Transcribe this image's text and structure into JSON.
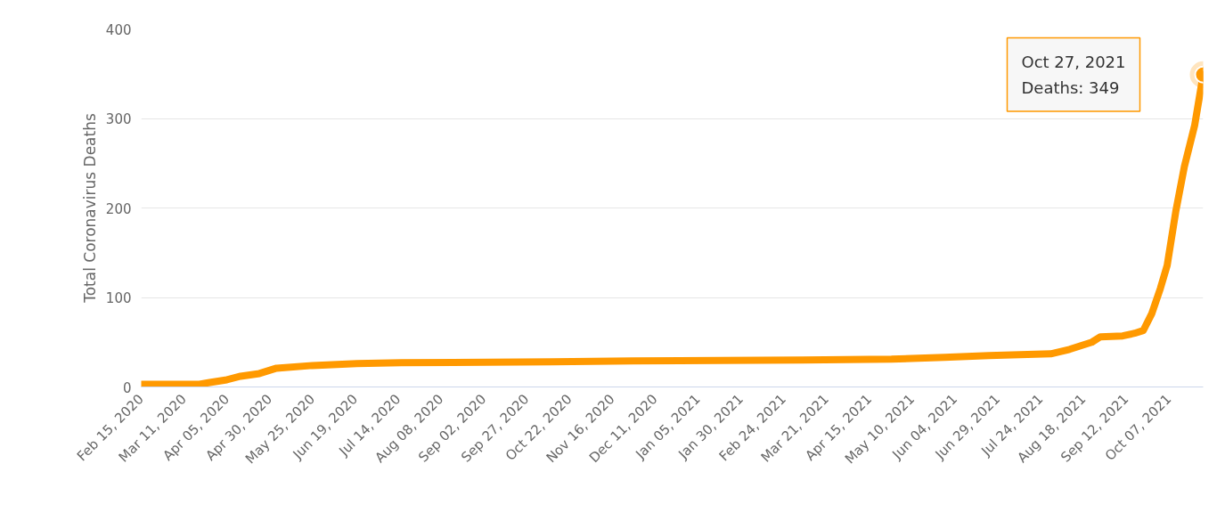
{
  "chart_data": {
    "type": "line",
    "ylabel": "Total Coronavirus Deaths",
    "x": [
      "2020-02-15",
      "2020-03-20",
      "2020-03-26",
      "2020-04-05",
      "2020-04-13",
      "2020-04-24",
      "2020-05-04",
      "2020-05-25",
      "2020-06-20",
      "2020-07-16",
      "2020-10-12",
      "2020-11-28",
      "2021-03-07",
      "2021-04-28",
      "2021-05-29",
      "2021-06-24",
      "2021-07-30",
      "2021-08-10",
      "2021-08-23",
      "2021-08-28",
      "2021-09-10",
      "2021-09-17",
      "2021-09-22",
      "2021-09-27",
      "2021-10-02",
      "2021-10-06",
      "2021-10-11",
      "2021-10-16",
      "2021-10-22",
      "2021-10-27"
    ],
    "series": [
      {
        "color": "#ff9900",
        "values": [
          3,
          3,
          5,
          8,
          12,
          15,
          21,
          24,
          26,
          27,
          28,
          29,
          30,
          31,
          33,
          35,
          37,
          42,
          50,
          56,
          57,
          60,
          63,
          82,
          110,
          136,
          196,
          246,
          292,
          349
        ]
      }
    ],
    "xlim": [
      "2020-02-15",
      "2021-10-27"
    ],
    "xticks": [
      {
        "value": "2020-02-15",
        "label": "Feb 15, 2020"
      },
      {
        "value": "2020-03-11",
        "label": "Mar 11, 2020"
      },
      {
        "value": "2020-04-05",
        "label": "Apr 05, 2020"
      },
      {
        "value": "2020-04-30",
        "label": "Apr 30, 2020"
      },
      {
        "value": "2020-05-25",
        "label": "May 25, 2020"
      },
      {
        "value": "2020-06-19",
        "label": "Jun 19, 2020"
      },
      {
        "value": "2020-07-14",
        "label": "Jul 14, 2020"
      },
      {
        "value": "2020-08-08",
        "label": "Aug 08, 2020"
      },
      {
        "value": "2020-09-02",
        "label": "Sep 02, 2020"
      },
      {
        "value": "2020-09-27",
        "label": "Sep 27, 2020"
      },
      {
        "value": "2020-10-22",
        "label": "Oct 22, 2020"
      },
      {
        "value": "2020-11-16",
        "label": "Nov 16, 2020"
      },
      {
        "value": "2020-12-11",
        "label": "Dec 11, 2020"
      },
      {
        "value": "2021-01-05",
        "label": "Jan 05, 2021"
      },
      {
        "value": "2021-01-30",
        "label": "Jan 30, 2021"
      },
      {
        "value": "2021-02-24",
        "label": "Feb 24, 2021"
      },
      {
        "value": "2021-03-21",
        "label": "Mar 21, 2021"
      },
      {
        "value": "2021-04-15",
        "label": "Apr 15, 2021"
      },
      {
        "value": "2021-05-10",
        "label": "May 10, 2021"
      },
      {
        "value": "2021-06-04",
        "label": "Jun 04, 2021"
      },
      {
        "value": "2021-06-29",
        "label": "Jun 29, 2021"
      },
      {
        "value": "2021-07-24",
        "label": "Jul 24, 2021"
      },
      {
        "value": "2021-08-18",
        "label": "Aug 18, 2021"
      },
      {
        "value": "2021-09-12",
        "label": "Sep 12, 2021"
      },
      {
        "value": "2021-10-07",
        "label": "Oct 07, 2021"
      }
    ],
    "ylim": [
      0,
      400
    ],
    "yticks": [
      0,
      100,
      200,
      300,
      400
    ],
    "grid": "y",
    "marker": "none",
    "line_style": "solid",
    "annotations": [
      "Oct 27, 2021",
      "Deaths: 349"
    ]
  }
}
